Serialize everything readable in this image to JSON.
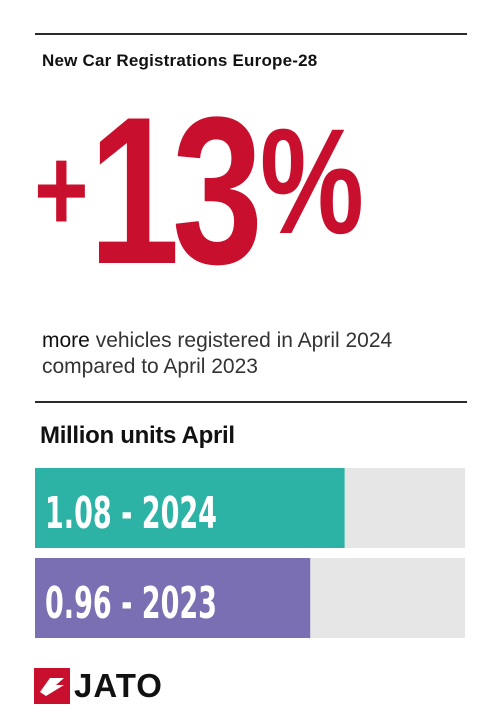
{
  "header": {
    "title": "New Car Registrations Europe-28"
  },
  "headline": {
    "sign": "+",
    "number": "13",
    "symbol": "%"
  },
  "subtext": {
    "emphasis": "more",
    "line1_rest": " vehicles registered in April 2024",
    "line2": "compared to April 2023"
  },
  "chart_title": "Million units April",
  "colors": {
    "accent_red": "#c8102e",
    "bar_2024": "#2db3a6",
    "bar_2023": "#7b6fb3",
    "track": "#e6e6e6"
  },
  "chart_data": {
    "type": "bar",
    "orientation": "horizontal",
    "title": "Million units April",
    "xlim": [
      0,
      1.5
    ],
    "bars": [
      {
        "label": "1.08 - 2024",
        "year": "2024",
        "value": 1.08,
        "color": "#2db3a6"
      },
      {
        "label": "0.96 - 2023",
        "year": "2023",
        "value": 0.96,
        "color": "#7b6fb3"
      }
    ]
  },
  "logo": {
    "text": "JATO",
    "icon": "jato-flag-icon"
  }
}
